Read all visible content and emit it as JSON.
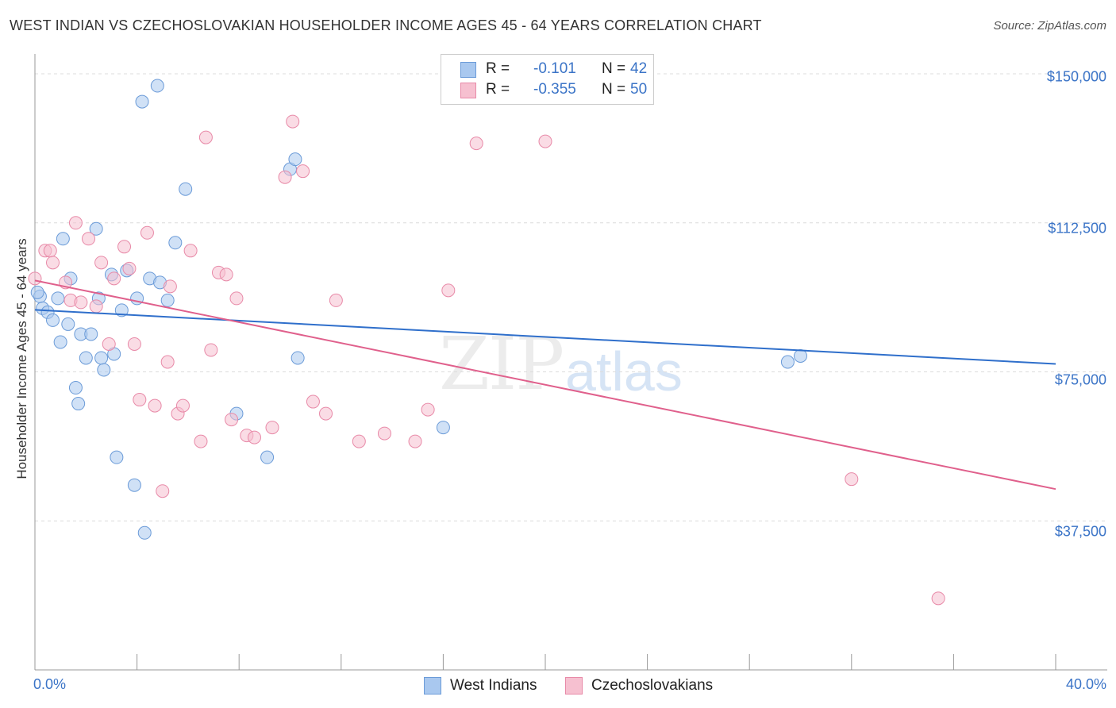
{
  "title": "WEST INDIAN VS CZECHOSLOVAKIAN HOUSEHOLDER INCOME AGES 45 - 64 YEARS CORRELATION CHART",
  "source": "Source: ZipAtlas.com",
  "watermark": {
    "zip": "ZIP",
    "atlas": "atlas"
  },
  "legend": {
    "rows": [
      {
        "r_label": "R =",
        "r_value": "-0.101",
        "n_label": "N =",
        "n_value": "42",
        "color": "#a9c8ef",
        "stroke": "#6b9bd8"
      },
      {
        "r_label": "R =",
        "r_value": "-0.355",
        "n_label": "N =",
        "n_value": "50",
        "color": "#f6c0d0",
        "stroke": "#e88aa8"
      }
    ]
  },
  "bottom_legend": [
    {
      "label": "West Indians",
      "color": "#a9c8ef",
      "stroke": "#6b9bd8"
    },
    {
      "label": "Czechoslovakians",
      "color": "#f6c0d0",
      "stroke": "#e88aa8"
    }
  ],
  "chart_data": {
    "type": "scatter",
    "title": "WEST INDIAN VS CZECHOSLOVAKIAN HOUSEHOLDER INCOME AGES 45 - 64 YEARS CORRELATION CHART",
    "xlabel": "",
    "ylabel": "Householder Income Ages 45 - 64 years",
    "xlim": [
      0,
      40
    ],
    "ylim": [
      0,
      153000
    ],
    "x_tick_labels": [
      "0.0%",
      "40.0%"
    ],
    "y_ticks": [
      37500,
      75000,
      112500,
      150000
    ],
    "y_tick_labels": [
      "$37,500",
      "$75,000",
      "$112,500",
      "$150,000"
    ],
    "grid": true,
    "series": [
      {
        "name": "West Indians",
        "color": "#6b9bd8",
        "fill": "#a9c8ef",
        "trend": {
          "x": [
            0,
            40
          ],
          "y": [
            90600,
            77000
          ],
          "color": "#2f6fcb"
        },
        "points": [
          [
            0.2,
            94000
          ],
          [
            0.3,
            91000
          ],
          [
            0.5,
            90000
          ],
          [
            0.7,
            88000
          ],
          [
            0.9,
            93500
          ],
          [
            1.0,
            82500
          ],
          [
            1.1,
            108500
          ],
          [
            1.3,
            87000
          ],
          [
            1.4,
            98500
          ],
          [
            1.6,
            71000
          ],
          [
            1.7,
            67000
          ],
          [
            1.8,
            84500
          ],
          [
            2.0,
            78500
          ],
          [
            2.2,
            84500
          ],
          [
            2.4,
            111000
          ],
          [
            2.5,
            93500
          ],
          [
            2.6,
            78500
          ],
          [
            2.7,
            75500
          ],
          [
            3.0,
            99500
          ],
          [
            3.1,
            79500
          ],
          [
            3.2,
            53500
          ],
          [
            3.4,
            90500
          ],
          [
            3.6,
            100500
          ],
          [
            3.9,
            46500
          ],
          [
            4.0,
            93500
          ],
          [
            4.2,
            143000
          ],
          [
            4.3,
            34500
          ],
          [
            4.5,
            98500
          ],
          [
            4.8,
            147000
          ],
          [
            4.9,
            97500
          ],
          [
            5.2,
            93000
          ],
          [
            5.5,
            107500
          ],
          [
            5.9,
            121000
          ],
          [
            7.9,
            64500
          ],
          [
            9.1,
            53500
          ],
          [
            10.0,
            126000
          ],
          [
            10.2,
            128500
          ],
          [
            10.3,
            78500
          ],
          [
            16.0,
            61000
          ],
          [
            29.5,
            77500
          ],
          [
            30.0,
            79000
          ],
          [
            0.1,
            95000
          ]
        ]
      },
      {
        "name": "Czechoslovakians",
        "color": "#e88aa8",
        "fill": "#f6c0d0",
        "trend": {
          "x": [
            0,
            40
          ],
          "y": [
            98000,
            45500
          ],
          "color": "#e0608c"
        },
        "points": [
          [
            0.0,
            98500
          ],
          [
            0.4,
            105500
          ],
          [
            0.6,
            105500
          ],
          [
            0.7,
            102500
          ],
          [
            1.2,
            97500
          ],
          [
            1.4,
            93000
          ],
          [
            1.6,
            112500
          ],
          [
            1.8,
            92500
          ],
          [
            2.1,
            108500
          ],
          [
            2.4,
            91500
          ],
          [
            2.6,
            102500
          ],
          [
            2.9,
            82000
          ],
          [
            3.1,
            98500
          ],
          [
            3.5,
            106500
          ],
          [
            3.7,
            101000
          ],
          [
            3.9,
            82000
          ],
          [
            4.1,
            68000
          ],
          [
            4.4,
            110000
          ],
          [
            4.7,
            66500
          ],
          [
            5.0,
            45000
          ],
          [
            5.2,
            77500
          ],
          [
            5.3,
            96500
          ],
          [
            5.6,
            64500
          ],
          [
            5.8,
            66500
          ],
          [
            6.1,
            105500
          ],
          [
            6.5,
            57500
          ],
          [
            6.7,
            134000
          ],
          [
            6.9,
            80500
          ],
          [
            7.2,
            100000
          ],
          [
            7.5,
            99500
          ],
          [
            7.7,
            63000
          ],
          [
            7.9,
            93500
          ],
          [
            8.3,
            59000
          ],
          [
            8.6,
            58500
          ],
          [
            9.3,
            61000
          ],
          [
            9.8,
            124000
          ],
          [
            10.1,
            138000
          ],
          [
            10.5,
            125500
          ],
          [
            10.9,
            67500
          ],
          [
            11.4,
            64500
          ],
          [
            11.8,
            93000
          ],
          [
            12.7,
            57500
          ],
          [
            13.7,
            59500
          ],
          [
            14.9,
            57500
          ],
          [
            15.4,
            65500
          ],
          [
            16.2,
            95500
          ],
          [
            17.3,
            132500
          ],
          [
            20.0,
            133000
          ],
          [
            32.0,
            48000
          ],
          [
            35.4,
            18000
          ]
        ]
      }
    ]
  }
}
